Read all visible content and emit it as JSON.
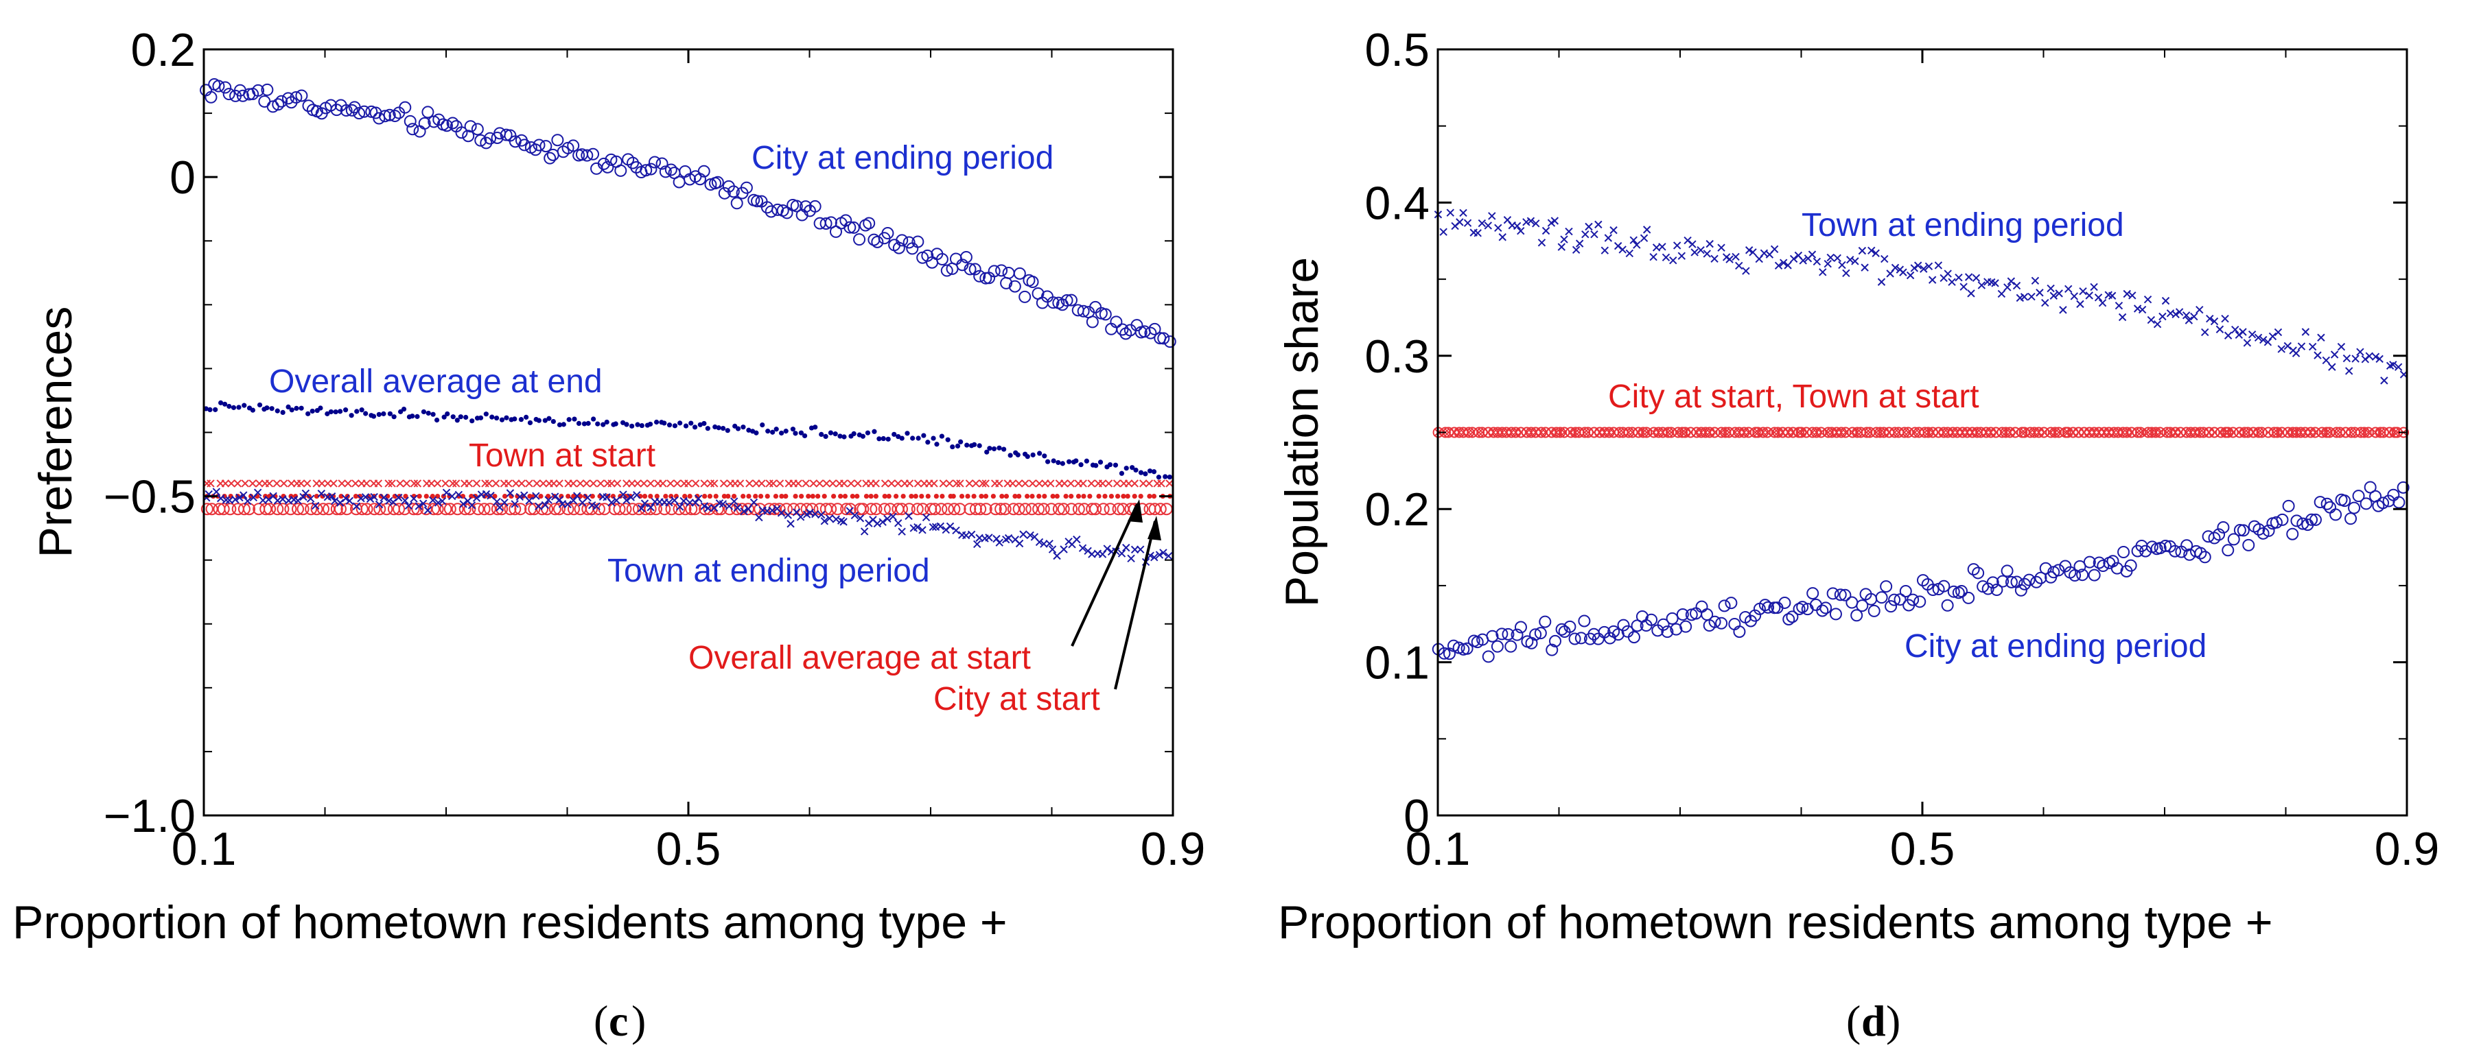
{
  "chart_data": [
    {
      "panel": "c",
      "type": "scatter",
      "caption_left": "(",
      "caption_letter": "c",
      "caption_right": ")",
      "xlabel": "Proportion of hometown residents among type +",
      "ylabel": "Preferences",
      "xlim": [
        0.1,
        0.9
      ],
      "ylim": [
        -1.0,
        0.2
      ],
      "xticks": [
        0.1,
        0.5,
        0.9
      ],
      "xtick_labels": [
        "0.1",
        "0.5",
        "0.9"
      ],
      "xminor": [
        0.2,
        0.3,
        0.4,
        0.6,
        0.7,
        0.8
      ],
      "yticks": [
        -1.0,
        -0.5,
        0,
        0.2
      ],
      "ytick_labels": [
        "−1.0",
        "−0.5",
        "0",
        "0.2"
      ],
      "yminor": [
        -0.9,
        -0.8,
        -0.7,
        -0.6,
        -0.4,
        -0.3,
        -0.2,
        -0.1,
        0.1
      ],
      "series": [
        {
          "name": "City at ending period",
          "color": "#1a1aa6",
          "marker": "circle",
          "trend": [
            [
              0.1,
              0.14
            ],
            [
              0.3,
              0.08
            ],
            [
              0.5,
              0.0
            ],
            [
              0.7,
              -0.12
            ],
            [
              0.9,
              -0.26
            ]
          ],
          "noise": 0.012,
          "n": 200
        },
        {
          "name": "Overall average at end",
          "color": "#00008b",
          "marker": "dot",
          "trend": [
            [
              0.1,
              -0.36
            ],
            [
              0.5,
              -0.39
            ],
            [
              0.7,
              -0.41
            ],
            [
              0.9,
              -0.47
            ]
          ],
          "noise": 0.005,
          "n": 200
        },
        {
          "name": "Town at start",
          "color": "#e8333a",
          "marker": "cross",
          "trend": [
            [
              0.1,
              -0.48
            ],
            [
              0.9,
              -0.48
            ]
          ],
          "noise": 0.0,
          "n": 150
        },
        {
          "name": "Overall average at start",
          "color": "#e02020",
          "marker": "dot",
          "trend": [
            [
              0.1,
              -0.5
            ],
            [
              0.9,
              -0.5
            ]
          ],
          "noise": 0.0,
          "n": 150
        },
        {
          "name": "City at start",
          "color": "#e8333a",
          "marker": "circle",
          "trend": [
            [
              0.1,
              -0.52
            ],
            [
              0.9,
              -0.52
            ]
          ],
          "noise": 0.0,
          "n": 150
        },
        {
          "name": "Town at ending period",
          "color": "#1a1aa6",
          "marker": "cross",
          "trend": [
            [
              0.1,
              -0.5
            ],
            [
              0.5,
              -0.51
            ],
            [
              0.7,
              -0.55
            ],
            [
              0.9,
              -0.6
            ]
          ],
          "noise": 0.01,
          "n": 200
        }
      ],
      "annotations": [
        {
          "text": "City at ending period",
          "color": "#1c2fd0"
        },
        {
          "text": "Overall average at end",
          "color": "#1c2fd0"
        },
        {
          "text": "Town at start",
          "color": "#e21b1b"
        },
        {
          "text": "Town at ending period",
          "color": "#1c2fd0"
        },
        {
          "text": "Overall average at start",
          "color": "#e21b1b"
        },
        {
          "text": "City at start",
          "color": "#e21b1b"
        }
      ]
    },
    {
      "panel": "d",
      "type": "scatter",
      "caption_left": "(",
      "caption_letter": "d",
      "caption_right": ")",
      "xlabel": "Proportion of hometown residents among type +",
      "ylabel": "Population share",
      "xlim": [
        0.1,
        0.9
      ],
      "ylim": [
        0,
        0.5
      ],
      "xticks": [
        0.1,
        0.5,
        0.9
      ],
      "xtick_labels": [
        "0.1",
        "0.5",
        "0.9"
      ],
      "xminor": [
        0.2,
        0.3,
        0.4,
        0.6,
        0.7,
        0.8
      ],
      "yticks": [
        0,
        0.1,
        0.2,
        0.3,
        0.4,
        0.5
      ],
      "ytick_labels": [
        "0",
        "0.1",
        "0.2",
        "0.3",
        "0.4",
        "0.5"
      ],
      "yminor": [
        0.05,
        0.15,
        0.25,
        0.35,
        0.45
      ],
      "series": [
        {
          "name": "Town at ending period",
          "color": "#1a1aa6",
          "marker": "cross",
          "trend": [
            [
              0.1,
              0.39
            ],
            [
              0.3,
              0.37
            ],
            [
              0.5,
              0.355
            ],
            [
              0.7,
              0.33
            ],
            [
              0.9,
              0.29
            ]
          ],
          "noise": 0.007,
          "n": 200
        },
        {
          "name": "City at start, Town at start",
          "color": "#e8333a",
          "marker": "circlecross",
          "trend": [
            [
              0.1,
              0.25
            ],
            [
              0.9,
              0.25
            ]
          ],
          "noise": 0.0,
          "n": 200
        },
        {
          "name": "City at ending period",
          "color": "#1a1aa6",
          "marker": "circle",
          "trend": [
            [
              0.1,
              0.11
            ],
            [
              0.3,
              0.125
            ],
            [
              0.5,
              0.145
            ],
            [
              0.7,
              0.17
            ],
            [
              0.9,
              0.21
            ]
          ],
          "noise": 0.007,
          "n": 200
        }
      ],
      "annotations": [
        {
          "text": "Town at ending period",
          "color": "#1c2fd0"
        },
        {
          "text": "City at start, Town at start",
          "color": "#e21b1b"
        },
        {
          "text": "City at ending period",
          "color": "#1c2fd0"
        }
      ]
    }
  ]
}
